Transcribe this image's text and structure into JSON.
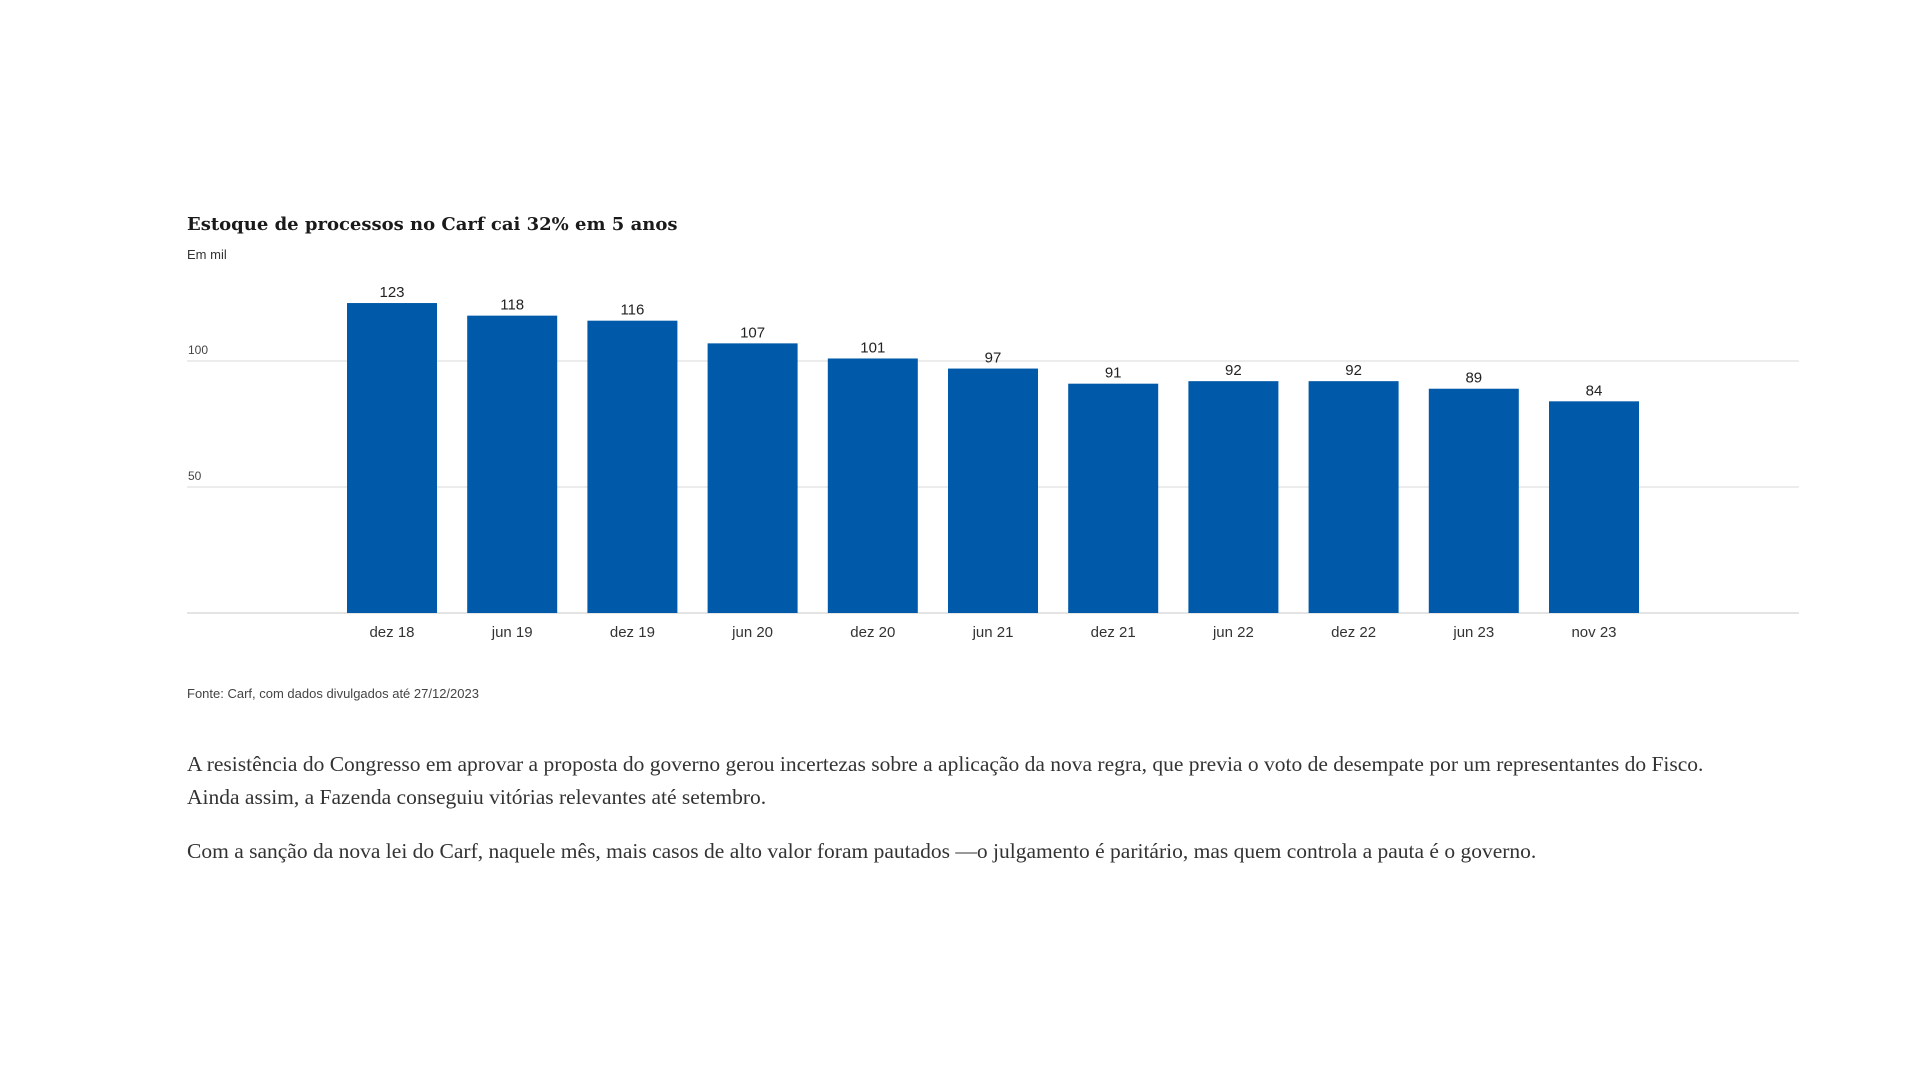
{
  "chart_data": {
    "type": "bar",
    "title": "Estoque de processos no Carf cai 32% em 5 anos",
    "subtitle": "Em mil",
    "categories": [
      "dez 18",
      "jun 19",
      "dez 19",
      "jun 20",
      "dez 20",
      "jun 21",
      "dez 21",
      "jun 22",
      "dez 22",
      "jun 23",
      "nov 23"
    ],
    "values": [
      123,
      118,
      116,
      107,
      101,
      97,
      91,
      92,
      92,
      89,
      84
    ],
    "data_labels": [
      "123",
      "118",
      "116",
      "107",
      "101",
      "97",
      "91",
      "92",
      "92",
      "89",
      "84"
    ],
    "xlabel": "",
    "ylabel": "",
    "ylim": [
      0,
      130
    ],
    "y_ticks": [
      50,
      100
    ],
    "y_tick_labels": [
      "50",
      "100"
    ],
    "grid": true,
    "colors": {
      "bar": "#005aa9",
      "grid": "#d8d8d8",
      "baseline": "#c8c8c8"
    }
  },
  "source": "Fonte: Carf, com dados divulgados até 27/12/2023",
  "article": {
    "paragraphs": [
      "A resistência do Congresso em aprovar a proposta do governo gerou incertezas sobre a aplicação da nova regra, que previa o voto de desempate por um representantes do Fisco. Ainda assim, a Fazenda conseguiu vitórias relevantes até setembro.",
      "Com a sanção da nova lei do Carf, naquele mês, mais casos de alto valor foram pautados —o julgamento é paritário, mas quem controla a pauta é o governo."
    ]
  }
}
